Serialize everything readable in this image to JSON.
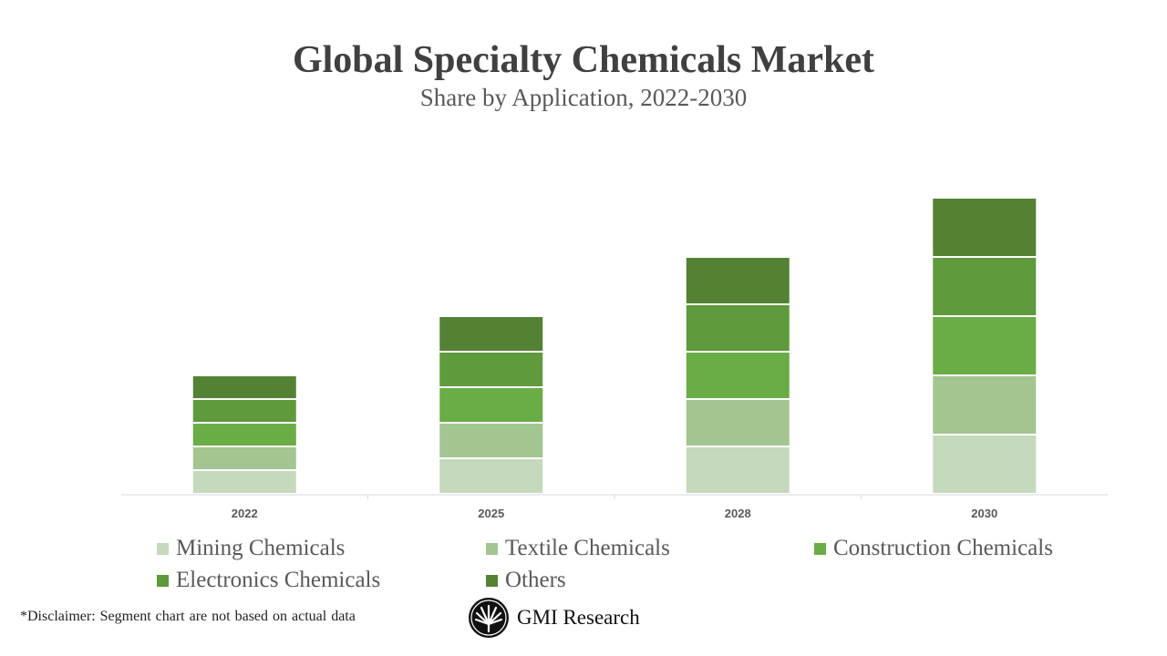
{
  "chart_data": {
    "type": "bar",
    "stacked": true,
    "title": "Global Specialty Chemicals Market",
    "subtitle": "Share by Application, 2022-2030",
    "categories": [
      "2022",
      "2025",
      "2028",
      "2030"
    ],
    "series": [
      {
        "name": "Mining Chemicals",
        "color": "#c5d9bc",
        "values": [
          2,
          3,
          4,
          5
        ]
      },
      {
        "name": "Textile Chemicals",
        "color": "#a3c592",
        "values": [
          2,
          3,
          4,
          5
        ]
      },
      {
        "name": "Construction Chemicals",
        "color": "#6aac46",
        "values": [
          2,
          3,
          4,
          5
        ]
      },
      {
        "name": "Electronics Chemicals",
        "color": "#5f9a3c",
        "values": [
          2,
          3,
          4,
          5
        ]
      },
      {
        "name": "Others",
        "color": "#548235",
        "values": [
          2,
          3,
          4,
          5
        ]
      }
    ],
    "yaxis_visible": false,
    "grid": false,
    "legend": "bottom"
  },
  "footer": {
    "disclaimer": "*Disclaimer:  Segment chart are not based on actual data",
    "logo_text": "GMI Research"
  }
}
